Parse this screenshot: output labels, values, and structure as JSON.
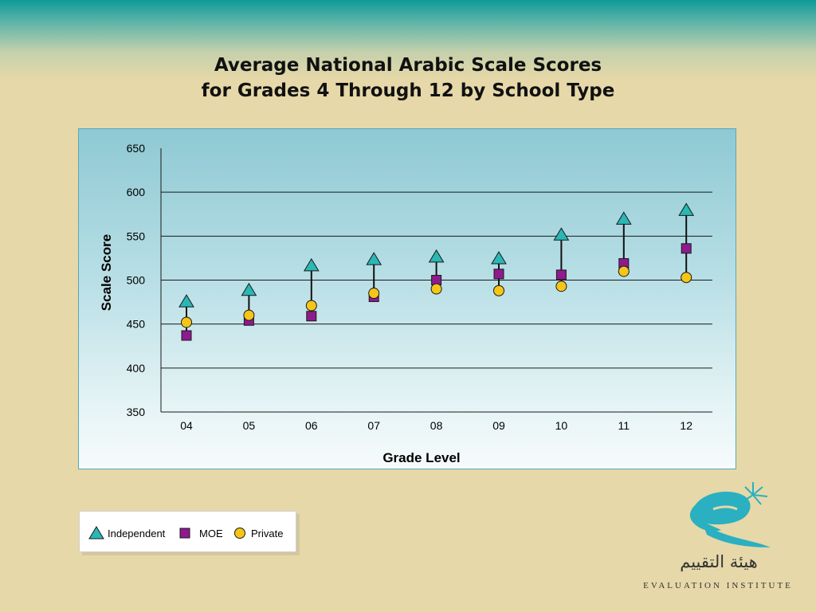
{
  "title": {
    "line1": "Average National Arabic Scale Scores",
    "line2": "for Grades 4 Through 12 by School Type"
  },
  "chart_data": {
    "type": "scatter",
    "categories": [
      "04",
      "05",
      "06",
      "07",
      "08",
      "09",
      "10",
      "11",
      "12"
    ],
    "xlabel": "Grade Level",
    "ylabel": "Scale Score",
    "ylim": [
      350,
      650
    ],
    "yticks": [
      350,
      400,
      450,
      500,
      550,
      600,
      650
    ],
    "grid": true,
    "series": [
      {
        "name": "Independent",
        "marker": "triangle",
        "color": "#2ab7b5",
        "values": [
          475,
          488,
          516,
          523,
          526,
          524,
          551,
          569,
          579
        ]
      },
      {
        "name": "MOE",
        "marker": "square",
        "color": "#8e1a8e",
        "values": [
          437,
          454,
          459,
          481,
          500,
          507,
          506,
          519,
          536
        ]
      },
      {
        "name": "Private",
        "marker": "circle",
        "color": "#f5c518",
        "values": [
          452,
          460,
          471,
          485,
          490,
          488,
          493,
          510,
          503
        ]
      }
    ]
  },
  "legend": {
    "items": [
      "Independent",
      "MOE",
      "Private"
    ]
  },
  "logo": {
    "arabic": "هيئة التقييم",
    "english": "EVALUATION INSTITUTE"
  }
}
